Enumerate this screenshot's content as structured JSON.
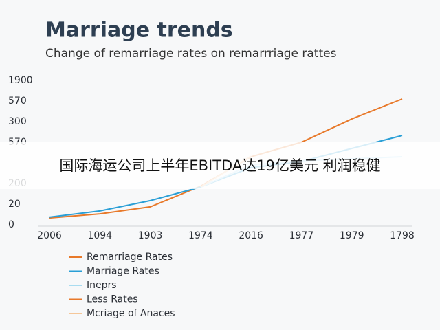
{
  "chart_data": {
    "type": "line",
    "title": "Marriage trends",
    "subtitle": "Change of remarriage rates on remarrriage rattes",
    "categories": [
      "2006",
      "1094",
      "1903",
      "1974",
      "2016",
      "1977",
      "1979",
      "1798"
    ],
    "ylim": [
      0,
      7
    ],
    "yticks": [
      0,
      {
        "value": 1,
        "label": "20"
      },
      {
        "value": 2,
        "label": "200"
      },
      {
        "value": 4,
        "label": "570"
      },
      {
        "value": 5,
        "label": "300"
      },
      {
        "value": 6,
        "label": "570"
      },
      {
        "value": 7,
        "label": "1900"
      }
    ],
    "grid": false,
    "series": [
      {
        "name": "Remarriage Rates",
        "color": "#e8792a",
        "values": [
          0.33,
          0.53,
          0.87,
          1.87,
          3.3,
          4.0,
          5.13,
          6.1
        ]
      },
      {
        "name": "Marriage Rates",
        "color": "#2a9fd6",
        "values": [
          0.37,
          0.67,
          1.17,
          1.83,
          2.77,
          3.07,
          3.7,
          4.33
        ]
      },
      {
        "name": "Ineprs",
        "color": "#a9dcf0",
        "values": [
          null,
          null,
          null,
          1.83,
          2.9,
          3.1,
          3.2,
          3.3
        ]
      },
      {
        "name": "Less Rates",
        "color": "#e8792a",
        "values": [
          null,
          null,
          null,
          null,
          null,
          null,
          null,
          null
        ]
      },
      {
        "name": "Mcriage of Anaces",
        "color": "#f5c79a",
        "values": [
          null,
          null,
          null,
          1.83,
          3.33,
          null,
          null,
          null
        ]
      }
    ]
  },
  "overlay_banner": "国际海运公司上半年EBITDA达19亿美元 利润稳健"
}
